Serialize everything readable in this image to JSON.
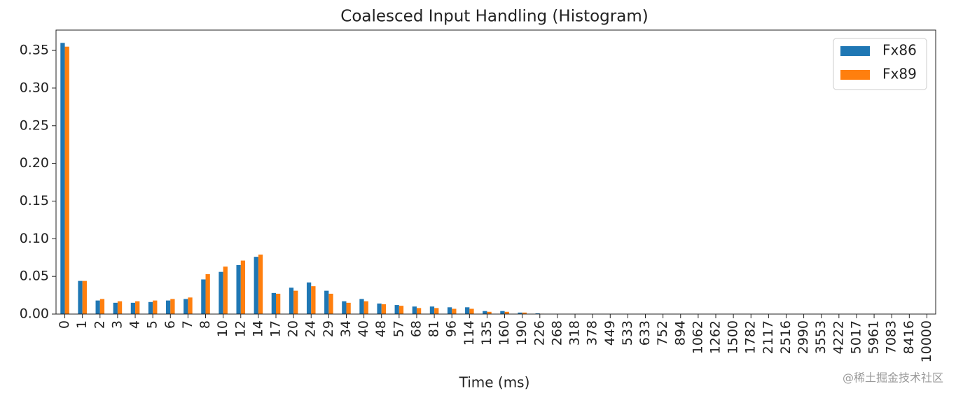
{
  "chart_data": {
    "type": "bar",
    "title": "Coalesced Input Handling (Histogram)",
    "xlabel": "Time (ms)",
    "categories": [
      "0",
      "1",
      "2",
      "3",
      "4",
      "5",
      "6",
      "7",
      "8",
      "10",
      "12",
      "14",
      "17",
      "20",
      "24",
      "29",
      "34",
      "40",
      "48",
      "57",
      "68",
      "81",
      "96",
      "114",
      "135",
      "160",
      "190",
      "226",
      "268",
      "318",
      "378",
      "449",
      "533",
      "633",
      "752",
      "894",
      "1062",
      "1262",
      "1500",
      "1782",
      "2117",
      "2516",
      "2990",
      "3553",
      "4222",
      "5017",
      "5961",
      "7083",
      "8416",
      "10000"
    ],
    "series": [
      {
        "name": "Fx86",
        "color": "#1f77b4",
        "values": [
          0.36,
          0.044,
          0.018,
          0.015,
          0.015,
          0.016,
          0.018,
          0.02,
          0.046,
          0.056,
          0.065,
          0.076,
          0.028,
          0.035,
          0.042,
          0.031,
          0.017,
          0.02,
          0.014,
          0.012,
          0.01,
          0.01,
          0.009,
          0.009,
          0.004,
          0.004,
          0.002,
          0.001,
          0,
          0,
          0,
          0,
          0,
          0,
          0,
          0,
          0,
          0,
          0,
          0,
          0,
          0,
          0,
          0,
          0,
          0,
          0,
          0,
          0,
          0
        ]
      },
      {
        "name": "Fx89",
        "color": "#ff7f0e",
        "values": [
          0.355,
          0.044,
          0.02,
          0.017,
          0.017,
          0.018,
          0.02,
          0.022,
          0.053,
          0.063,
          0.071,
          0.079,
          0.027,
          0.031,
          0.037,
          0.027,
          0.015,
          0.017,
          0.013,
          0.011,
          0.008,
          0.008,
          0.007,
          0.007,
          0.003,
          0.003,
          0.002,
          0.0005,
          0,
          0,
          0,
          0,
          0,
          0,
          0,
          0,
          0,
          0,
          0,
          0,
          0,
          0,
          0,
          0,
          0,
          0,
          0,
          0,
          0,
          0
        ]
      }
    ],
    "ylim": [
      0,
      0.377
    ],
    "yticks": [
      {
        "value": 0,
        "label": "0.00"
      },
      {
        "value": 0.05,
        "label": "0.05"
      },
      {
        "value": 0.1,
        "label": "0.10"
      },
      {
        "value": 0.15,
        "label": "0.15"
      },
      {
        "value": 0.2,
        "label": "0.20"
      },
      {
        "value": 0.25,
        "label": "0.25"
      },
      {
        "value": 0.3,
        "label": "0.30"
      },
      {
        "value": 0.35,
        "label": "0.35"
      }
    ],
    "legend": "upper right",
    "watermark": "@稀土掘金技术社区"
  }
}
